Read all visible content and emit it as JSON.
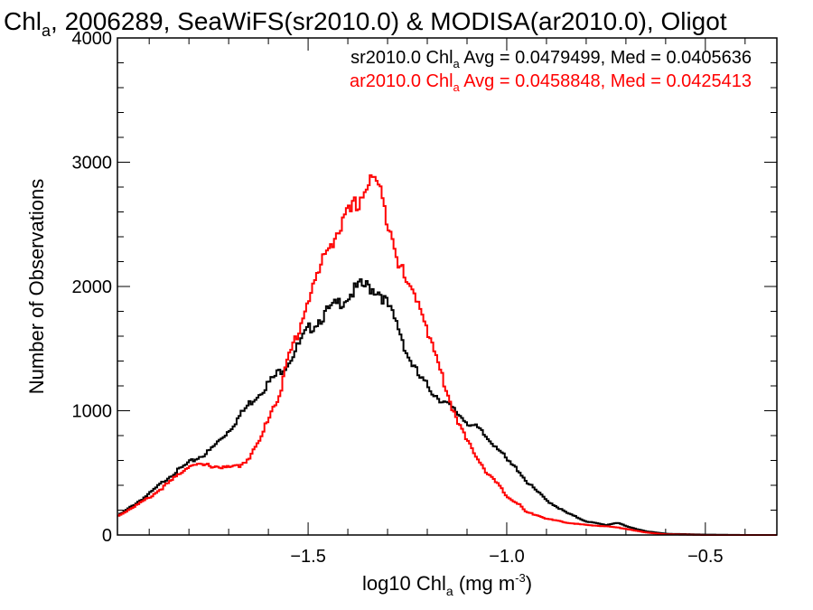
{
  "chart_data": {
    "type": "line",
    "title_parts": [
      "Chl",
      "a",
      ", 2006289, SeaWiFS(sr2010.0) & MODISA(ar2010.0), Oligot"
    ],
    "xlabel_parts": [
      "log10 Chl",
      "a",
      " (mg m",
      "-3",
      ")"
    ],
    "ylabel": "Number of Observations",
    "xlim": [
      -1.98,
      -0.32
    ],
    "ylim": [
      0,
      4000
    ],
    "xticks": [
      -1.5,
      -1.0,
      -0.5
    ],
    "xtick_labels": [
      "−1.5",
      "−1.0",
      "−0.5"
    ],
    "yticks": [
      0,
      1000,
      2000,
      3000,
      4000
    ],
    "ytick_labels": [
      "0",
      "1000",
      "2000",
      "3000",
      "4000"
    ],
    "annotations": [
      {
        "parts": [
          "sr2010.0 Chl",
          "a",
          " Avg = 0.0479499, Med = 0.0405636"
        ],
        "color": "#000000"
      },
      {
        "parts": [
          "ar2010.0 Chl",
          "a",
          " Avg = 0.0458848, Med = 0.0425413"
        ],
        "color": "#ff0000"
      }
    ],
    "series": [
      {
        "name": "sr2010.0",
        "color": "#000000",
        "x": [
          -1.98,
          -1.9,
          -1.85,
          -1.8,
          -1.75,
          -1.7,
          -1.65,
          -1.6,
          -1.55,
          -1.5,
          -1.45,
          -1.4,
          -1.37,
          -1.35,
          -1.32,
          -1.3,
          -1.27,
          -1.25,
          -1.22,
          -1.2,
          -1.18,
          -1.15,
          -1.12,
          -1.1,
          -1.07,
          -1.05,
          -1.02,
          -1.0,
          -0.97,
          -0.95,
          -0.92,
          -0.9,
          -0.85,
          -0.8,
          -0.75,
          -0.72,
          -0.7,
          -0.65,
          -0.6,
          -0.5,
          -0.4,
          -0.32
        ],
        "y": [
          150,
          330,
          470,
          580,
          670,
          840,
          1050,
          1220,
          1390,
          1650,
          1800,
          1920,
          2000,
          2000,
          1960,
          1850,
          1650,
          1450,
          1270,
          1200,
          1130,
          1050,
          970,
          910,
          850,
          780,
          700,
          600,
          520,
          430,
          340,
          280,
          180,
          110,
          80,
          100,
          70,
          30,
          10,
          3,
          0,
          0
        ]
      },
      {
        "name": "ar2010.0",
        "color": "#ff0000",
        "x": [
          -1.98,
          -1.9,
          -1.85,
          -1.8,
          -1.75,
          -1.7,
          -1.67,
          -1.65,
          -1.62,
          -1.6,
          -1.57,
          -1.55,
          -1.52,
          -1.5,
          -1.47,
          -1.45,
          -1.42,
          -1.4,
          -1.37,
          -1.35,
          -1.33,
          -1.31,
          -1.29,
          -1.27,
          -1.25,
          -1.23,
          -1.21,
          -1.2,
          -1.18,
          -1.16,
          -1.14,
          -1.12,
          -1.1,
          -1.07,
          -1.05,
          -1.02,
          -1.0,
          -0.97,
          -0.95,
          -0.92,
          -0.9,
          -0.85,
          -0.8,
          -0.75,
          -0.72,
          -0.7,
          -0.65,
          -0.6,
          -0.5,
          -0.4,
          -0.32
        ],
        "y": [
          150,
          300,
          420,
          560,
          560,
          540,
          560,
          620,
          760,
          950,
          1150,
          1420,
          1680,
          1900,
          2130,
          2320,
          2470,
          2570,
          2700,
          2830,
          2870,
          2650,
          2450,
          2180,
          2000,
          1930,
          1800,
          1650,
          1450,
          1250,
          1050,
          900,
          750,
          610,
          500,
          400,
          310,
          250,
          180,
          160,
          130,
          100,
          80,
          70,
          60,
          50,
          20,
          5,
          0,
          0,
          0
        ]
      }
    ]
  }
}
